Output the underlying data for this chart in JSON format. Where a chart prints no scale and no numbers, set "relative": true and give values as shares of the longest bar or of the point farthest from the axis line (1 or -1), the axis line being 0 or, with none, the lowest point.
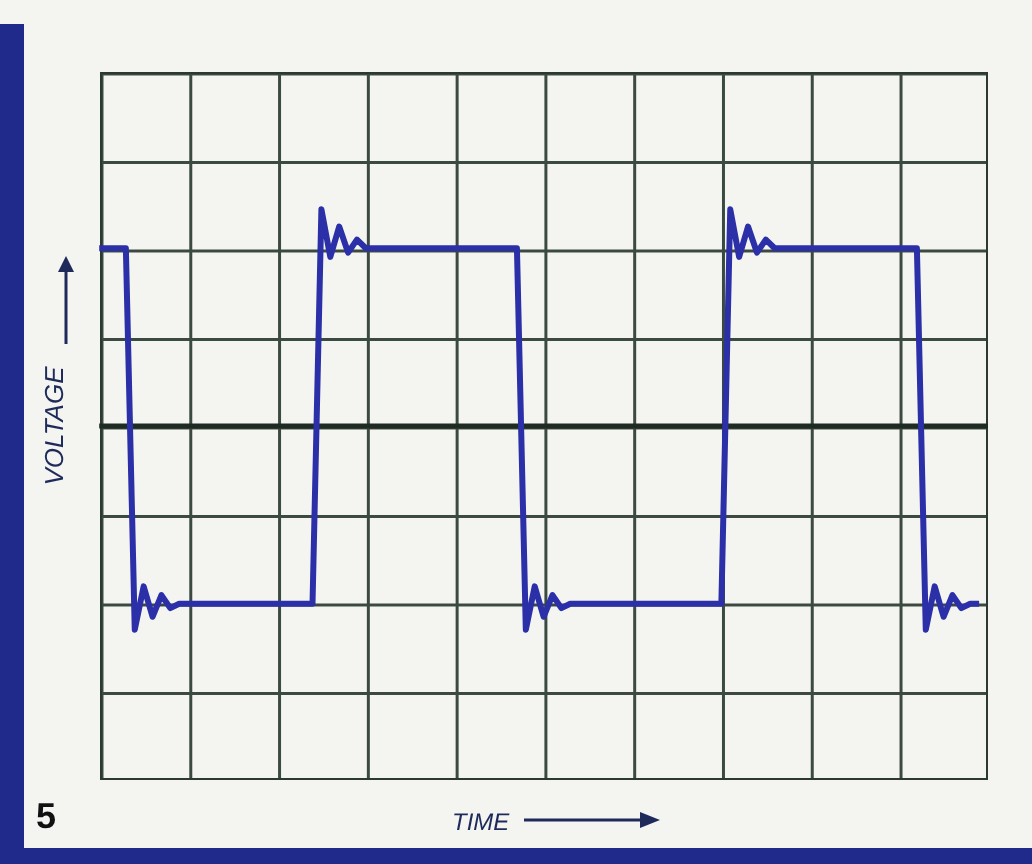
{
  "chart_data": {
    "type": "line",
    "relative": true,
    "ylabel": "VOLTAGE",
    "annotations": [
      "5",
      "TIME"
    ],
    "legend": false,
    "marker": "none",
    "line_style": "solid",
    "categories": [
      null,
      null,
      null,
      null,
      null,
      null,
      null,
      null,
      null,
      null,
      null,
      null,
      null,
      null,
      null,
      null,
      null,
      null,
      null,
      null,
      null,
      null,
      null,
      null,
      null,
      null,
      null,
      null,
      null,
      null,
      null,
      null,
      null,
      null,
      null,
      null,
      null,
      null,
      null,
      null,
      null,
      null,
      null,
      null,
      null,
      null,
      null,
      null,
      null,
      null,
      null,
      null,
      null,
      null,
      null,
      null,
      null,
      null,
      null,
      null,
      null,
      null,
      null,
      null,
      null,
      null,
      null,
      null,
      null,
      null,
      null,
      null,
      null,
      null,
      null,
      null,
      null,
      null,
      null,
      null,
      null,
      null,
      null,
      null,
      null,
      null,
      null,
      null,
      null,
      null,
      null,
      null,
      null,
      null,
      null,
      null,
      null,
      null,
      null,
      null,
      null
    ],
    "series": [
      {
        "color": "#2b2fa8",
        "values": [
          0.82,
          0.82,
          0.82,
          0.82,
          -0.94,
          -0.74,
          -0.88,
          -0.78,
          -0.84,
          -0.82,
          -0.82,
          -0.82,
          -0.82,
          -0.82,
          -0.82,
          -0.82,
          -0.82,
          -0.82,
          -0.82,
          -0.82,
          -0.82,
          -0.82,
          -0.82,
          -0.82,
          -0.82,
          1,
          0.78,
          0.92,
          0.8,
          0.86,
          0.82,
          0.82,
          0.82,
          0.82,
          0.82,
          0.82,
          0.82,
          0.82,
          0.82,
          0.82,
          0.82,
          0.82,
          0.82,
          0.82,
          0.82,
          0.82,
          0.82,
          0.82,
          -0.94,
          -0.74,
          -0.88,
          -0.78,
          -0.84,
          -0.82,
          -0.82,
          -0.82,
          -0.82,
          -0.82,
          -0.82,
          -0.82,
          -0.82,
          -0.82,
          -0.82,
          -0.82,
          -0.82,
          -0.82,
          -0.82,
          -0.82,
          -0.82,
          -0.82,
          -0.82,
          1,
          0.78,
          0.92,
          0.8,
          0.86,
          0.82,
          0.82,
          0.82,
          0.82,
          0.82,
          0.82,
          0.82,
          0.82,
          0.82,
          0.82,
          0.82,
          0.82,
          0.82,
          0.82,
          0.82,
          0.82,
          0.82,
          -0.94,
          -0.74,
          -0.88,
          -0.78,
          -0.84,
          -0.82,
          -0.82,
          null
        ]
      }
    ]
  }
}
